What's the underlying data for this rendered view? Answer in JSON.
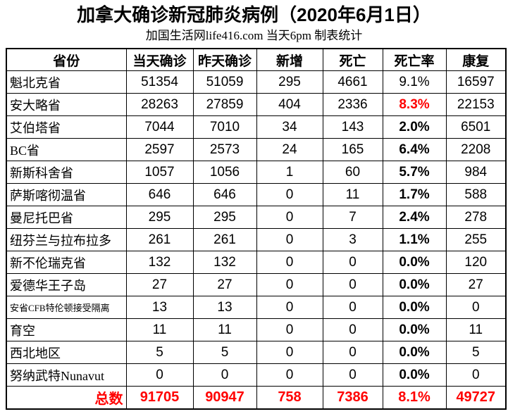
{
  "title": "加拿大确诊新冠肺炎病例（2020年6月1日）",
  "subtitle": "加国生活网life416.com 当天6pm 制表统计",
  "colors": {
    "background": "#ffffff",
    "text": "#000000",
    "border": "#000000",
    "accent_red": "#ff0000"
  },
  "table": {
    "columns": [
      {
        "key": "province",
        "label": "省份"
      },
      {
        "key": "today",
        "label": "当天确诊"
      },
      {
        "key": "yesterday",
        "label": "昨天确诊"
      },
      {
        "key": "new",
        "label": "新增"
      },
      {
        "key": "deaths",
        "label": "死亡"
      },
      {
        "key": "death_rate",
        "label": "死亡率"
      },
      {
        "key": "recovered",
        "label": "康复"
      }
    ],
    "rows": [
      {
        "province": "魁北克省",
        "today": "51354",
        "yesterday": "51059",
        "new": "295",
        "deaths": "4661",
        "death_rate": "9.1%",
        "recovered": "16597",
        "rate_bold": false,
        "rate_red": false,
        "small_label": false
      },
      {
        "province": "安大略省",
        "today": "28263",
        "yesterday": "27859",
        "new": "404",
        "deaths": "2336",
        "death_rate": "8.3%",
        "recovered": "22153",
        "rate_bold": true,
        "rate_red": true,
        "small_label": false
      },
      {
        "province": "艾伯塔省",
        "today": "7044",
        "yesterday": "7010",
        "new": "34",
        "deaths": "143",
        "death_rate": "2.0%",
        "recovered": "6501",
        "rate_bold": true,
        "rate_red": false,
        "small_label": false
      },
      {
        "province": "BC省",
        "today": "2597",
        "yesterday": "2573",
        "new": "24",
        "deaths": "165",
        "death_rate": "6.4%",
        "recovered": "2208",
        "rate_bold": true,
        "rate_red": false,
        "small_label": false
      },
      {
        "province": "新斯科舍省",
        "today": "1057",
        "yesterday": "1056",
        "new": "1",
        "deaths": "60",
        "death_rate": "5.7%",
        "recovered": "984",
        "rate_bold": true,
        "rate_red": false,
        "small_label": false
      },
      {
        "province": "萨斯喀彻温省",
        "today": "646",
        "yesterday": "646",
        "new": "0",
        "deaths": "11",
        "death_rate": "1.7%",
        "recovered": "588",
        "rate_bold": true,
        "rate_red": false,
        "small_label": false
      },
      {
        "province": "曼尼托巴省",
        "today": "295",
        "yesterday": "295",
        "new": "0",
        "deaths": "7",
        "death_rate": "2.4%",
        "recovered": "278",
        "rate_bold": true,
        "rate_red": false,
        "small_label": false
      },
      {
        "province": "纽芬兰与拉布拉多",
        "today": "261",
        "yesterday": "261",
        "new": "0",
        "deaths": "3",
        "death_rate": "1.1%",
        "recovered": "255",
        "rate_bold": true,
        "rate_red": false,
        "small_label": false
      },
      {
        "province": "新不伦瑞克省",
        "today": "132",
        "yesterday": "132",
        "new": "0",
        "deaths": "0",
        "death_rate": "0.0%",
        "recovered": "120",
        "rate_bold": true,
        "rate_red": false,
        "small_label": false
      },
      {
        "province": "爱德华王子岛",
        "today": "27",
        "yesterday": "27",
        "new": "0",
        "deaths": "0",
        "death_rate": "0.0%",
        "recovered": "27",
        "rate_bold": true,
        "rate_red": false,
        "small_label": false
      },
      {
        "province": "安省CFB特伦顿接受隔离",
        "today": "13",
        "yesterday": "13",
        "new": "0",
        "deaths": "0",
        "death_rate": "0.0%",
        "recovered": "0",
        "rate_bold": true,
        "rate_red": false,
        "small_label": true
      },
      {
        "province": "育空",
        "today": "11",
        "yesterday": "11",
        "new": "0",
        "deaths": "0",
        "death_rate": "0.0%",
        "recovered": "11",
        "rate_bold": true,
        "rate_red": false,
        "small_label": false
      },
      {
        "province": "西北地区",
        "today": "5",
        "yesterday": "5",
        "new": "0",
        "deaths": "0",
        "death_rate": "0.0%",
        "recovered": "5",
        "rate_bold": true,
        "rate_red": false,
        "small_label": false
      },
      {
        "province": "努纳武特Nunavut",
        "today": "0",
        "yesterday": "0",
        "new": "0",
        "deaths": "0",
        "death_rate": "0.0%",
        "recovered": "0",
        "rate_bold": true,
        "rate_red": false,
        "small_label": false
      }
    ],
    "total": {
      "label": "总数",
      "today": "91705",
      "yesterday": "90947",
      "new": "758",
      "deaths": "7386",
      "death_rate": "8.1%",
      "recovered": "49727"
    }
  }
}
